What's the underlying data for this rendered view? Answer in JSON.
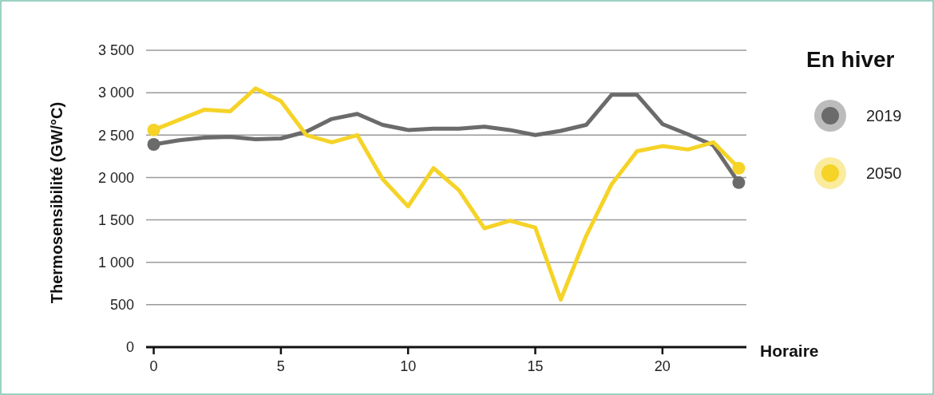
{
  "chart_data": {
    "type": "line",
    "xlabel": "Horaire",
    "ylabel": "Thermosensibilité (GW/°C)",
    "legend_title": "En hiver",
    "legend": "right",
    "grid": "y",
    "line_style": "solid",
    "x": [
      0,
      1,
      2,
      3,
      4,
      5,
      6,
      7,
      8,
      9,
      10,
      11,
      12,
      13,
      14,
      15,
      16,
      17,
      18,
      19,
      20,
      21,
      22,
      23
    ],
    "xlim": [
      -0.3,
      23.3
    ],
    "xticks": [
      0,
      5,
      10,
      15,
      20
    ],
    "ylim": [
      0,
      3500
    ],
    "yticks": [
      0,
      500,
      {
        "value": 1000,
        "label": "1 000"
      },
      {
        "value": 1500,
        "label": "1 500"
      },
      {
        "value": 2000,
        "label": "2 000"
      },
      {
        "value": 2500,
        "label": "2 500"
      },
      {
        "value": 3000,
        "label": "3 000"
      },
      {
        "value": 3500,
        "label": "3 500"
      }
    ],
    "series": [
      {
        "name": "2019",
        "color": "#6b6b6b",
        "values": [
          2390,
          2440,
          2470,
          2480,
          2450,
          2460,
          2540,
          2690,
          2750,
          2620,
          2560,
          2575,
          2575,
          2600,
          2560,
          2500,
          2550,
          2620,
          2975,
          2975,
          2630,
          2510,
          2380,
          1940
        ]
      },
      {
        "name": "2050",
        "color": "#f5d327",
        "values": [
          2560,
          2680,
          2800,
          2780,
          3050,
          2900,
          2500,
          2415,
          2500,
          1980,
          1660,
          2110,
          1850,
          1400,
          1490,
          1410,
          560,
          1310,
          1920,
          2310,
          2370,
          2330,
          2415,
          2110
        ]
      }
    ]
  }
}
